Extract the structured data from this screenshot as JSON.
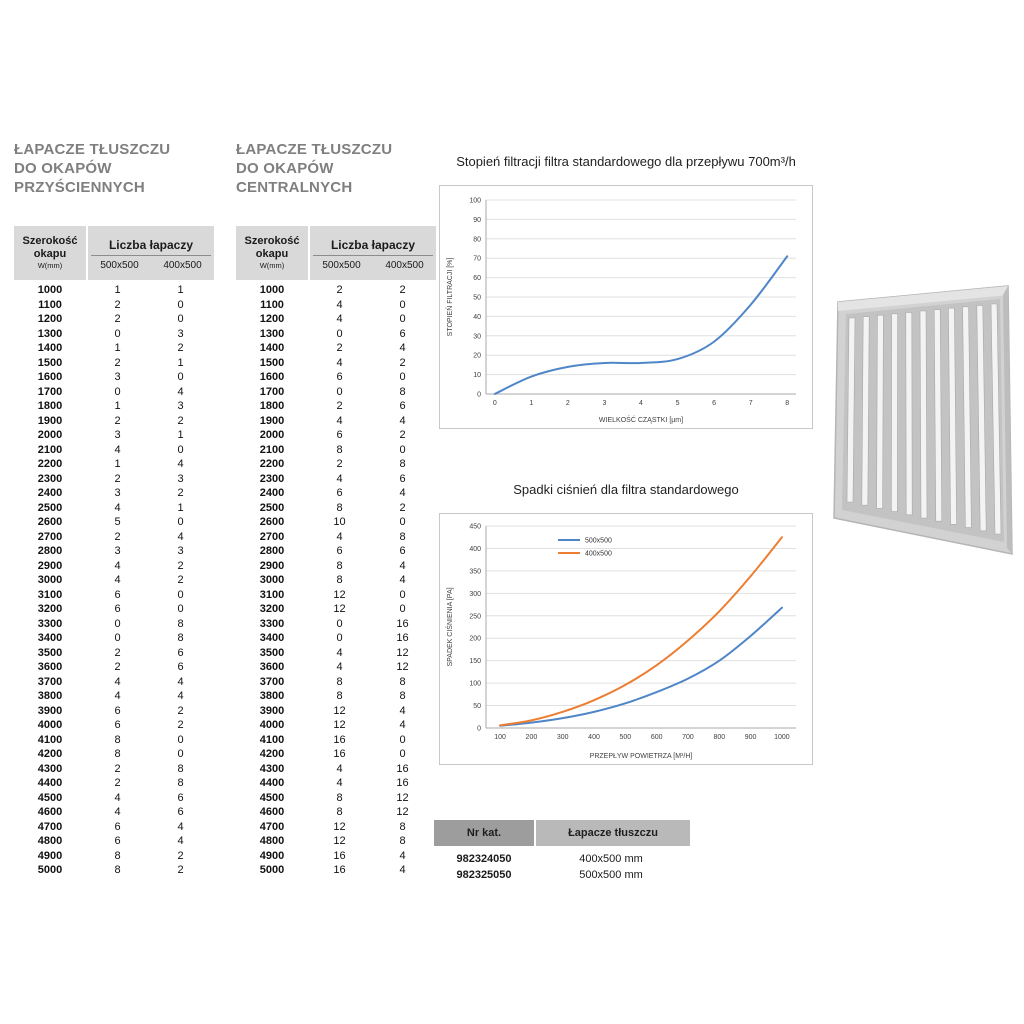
{
  "colors": {
    "series_blue": "#4e86c8",
    "series_orange": "#ed7d31",
    "table_header_grey": "#d9d9d9",
    "title_grey": "#7f7f7f",
    "catalog_header_dark": "#9d9d9d",
    "catalog_header_light": "#b9b9b9"
  },
  "images": {
    "filter": "baffle-grease-filter-photo"
  },
  "tables": {
    "wall": {
      "title_lines": [
        "ŁAPACZE TŁUSZCZU",
        "DO OKAPÓW",
        "PRZYŚCIENNYCH"
      ],
      "header": {
        "col1_line1": "Szerokość",
        "col1_line2": "okapu",
        "col1_unit": "W(mm)",
        "group": "Liczba łapaczy",
        "sub1": "500x500",
        "sub2": "400x500"
      },
      "rows": [
        [
          1000,
          1,
          1
        ],
        [
          1100,
          2,
          0
        ],
        [
          1200,
          2,
          0
        ],
        [
          1300,
          0,
          3
        ],
        [
          1400,
          1,
          2
        ],
        [
          1500,
          2,
          1
        ],
        [
          1600,
          3,
          0
        ],
        [
          1700,
          0,
          4
        ],
        [
          1800,
          1,
          3
        ],
        [
          1900,
          2,
          2
        ],
        [
          2000,
          3,
          1
        ],
        [
          2100,
          4,
          0
        ],
        [
          2200,
          1,
          4
        ],
        [
          2300,
          2,
          3
        ],
        [
          2400,
          3,
          2
        ],
        [
          2500,
          4,
          1
        ],
        [
          2600,
          5,
          0
        ],
        [
          2700,
          2,
          4
        ],
        [
          2800,
          3,
          3
        ],
        [
          2900,
          4,
          2
        ],
        [
          3000,
          4,
          2
        ],
        [
          3100,
          6,
          0
        ],
        [
          3200,
          6,
          0
        ],
        [
          3300,
          0,
          8
        ],
        [
          3400,
          0,
          8
        ],
        [
          3500,
          2,
          6
        ],
        [
          3600,
          2,
          6
        ],
        [
          3700,
          4,
          4
        ],
        [
          3800,
          4,
          4
        ],
        [
          3900,
          6,
          2
        ],
        [
          4000,
          6,
          2
        ],
        [
          4100,
          8,
          0
        ],
        [
          4200,
          8,
          0
        ],
        [
          4300,
          2,
          8
        ],
        [
          4400,
          2,
          8
        ],
        [
          4500,
          4,
          6
        ],
        [
          4600,
          4,
          6
        ],
        [
          4700,
          6,
          4
        ],
        [
          4800,
          6,
          4
        ],
        [
          4900,
          8,
          2
        ],
        [
          5000,
          8,
          2
        ]
      ]
    },
    "central": {
      "title_lines": [
        "ŁAPACZE TŁUSZCZU",
        "DO OKAPÓW",
        "CENTRALNYCH"
      ],
      "header": {
        "col1_line1": "Szerokość",
        "col1_line2": "okapu",
        "col1_unit": "W(mm)",
        "group": "Liczba łapaczy",
        "sub1": "500x500",
        "sub2": "400x500"
      },
      "rows": [
        [
          1000,
          2,
          2
        ],
        [
          1100,
          4,
          0
        ],
        [
          1200,
          4,
          0
        ],
        [
          1300,
          0,
          6
        ],
        [
          1400,
          2,
          4
        ],
        [
          1500,
          4,
          2
        ],
        [
          1600,
          6,
          0
        ],
        [
          1700,
          0,
          8
        ],
        [
          1800,
          2,
          6
        ],
        [
          1900,
          4,
          4
        ],
        [
          2000,
          6,
          2
        ],
        [
          2100,
          8,
          0
        ],
        [
          2200,
          2,
          8
        ],
        [
          2300,
          4,
          6
        ],
        [
          2400,
          6,
          4
        ],
        [
          2500,
          8,
          2
        ],
        [
          2600,
          10,
          0
        ],
        [
          2700,
          4,
          8
        ],
        [
          2800,
          6,
          6
        ],
        [
          2900,
          8,
          4
        ],
        [
          3000,
          8,
          4
        ],
        [
          3100,
          12,
          0
        ],
        [
          3200,
          12,
          0
        ],
        [
          3300,
          0,
          16
        ],
        [
          3400,
          0,
          16
        ],
        [
          3500,
          4,
          12
        ],
        [
          3600,
          4,
          12
        ],
        [
          3700,
          8,
          8
        ],
        [
          3800,
          8,
          8
        ],
        [
          3900,
          12,
          4
        ],
        [
          4000,
          12,
          4
        ],
        [
          4100,
          16,
          0
        ],
        [
          4200,
          16,
          0
        ],
        [
          4300,
          4,
          16
        ],
        [
          4400,
          4,
          16
        ],
        [
          4500,
          8,
          12
        ],
        [
          4600,
          8,
          12
        ],
        [
          4700,
          12,
          8
        ],
        [
          4800,
          12,
          8
        ],
        [
          4900,
          16,
          4
        ],
        [
          5000,
          16,
          4
        ]
      ]
    }
  },
  "chart_data": [
    {
      "type": "line",
      "title": "Stopień filtracji filtra standardowego dla przepływu 700m³/h",
      "xlabel": "WIELKOŚĆ CZĄSTKI [µm]",
      "ylabel": "STOPIEŃ FILTRACJI [%]",
      "xlim": [
        0,
        8
      ],
      "ylim": [
        0,
        100
      ],
      "xticks": [
        0,
        1,
        2,
        3,
        4,
        5,
        6,
        7,
        8
      ],
      "yticks": [
        0,
        10,
        20,
        30,
        40,
        50,
        60,
        70,
        80,
        90,
        100
      ],
      "grid": "horizontal",
      "legend": false,
      "series": [
        {
          "name": "stopień filtracji",
          "color": "#4e86c8",
          "x": [
            0,
            1,
            2,
            3,
            4,
            5,
            6,
            7,
            8
          ],
          "values": [
            0,
            9,
            14,
            16,
            16,
            18,
            27,
            46,
            71
          ]
        }
      ]
    },
    {
      "type": "line",
      "title": "Spadki ciśnień dla filtra standardowego",
      "xlabel": "PRZEPŁYW POWIETRZA [M³/H]",
      "ylabel": "SPADEK CIŚNIENIA [PA]",
      "xlim": [
        100,
        1000
      ],
      "ylim": [
        0,
        450
      ],
      "xticks": [
        100,
        200,
        300,
        400,
        500,
        600,
        700,
        800,
        900,
        1000
      ],
      "yticks": [
        0,
        50,
        100,
        150,
        200,
        250,
        300,
        350,
        400,
        450
      ],
      "grid": "horizontal",
      "legend_position": "top-center",
      "series": [
        {
          "name": "500x500",
          "color": "#4e86c8",
          "x": [
            100,
            200,
            300,
            400,
            500,
            600,
            700,
            800,
            900,
            1000
          ],
          "values": [
            5,
            12,
            22,
            36,
            55,
            80,
            110,
            150,
            205,
            268
          ]
        },
        {
          "name": "400x500",
          "color": "#ed7d31",
          "x": [
            100,
            200,
            300,
            400,
            500,
            600,
            700,
            800,
            900,
            1000
          ],
          "values": [
            6,
            17,
            36,
            62,
            96,
            140,
            195,
            260,
            338,
            425
          ]
        }
      ]
    }
  ],
  "catalog": {
    "headers": [
      "Nr kat.",
      "Łapacze tłuszczu"
    ],
    "rows": [
      [
        "982324050",
        "400x500 mm"
      ],
      [
        "982325050",
        "500x500 mm"
      ]
    ]
  }
}
